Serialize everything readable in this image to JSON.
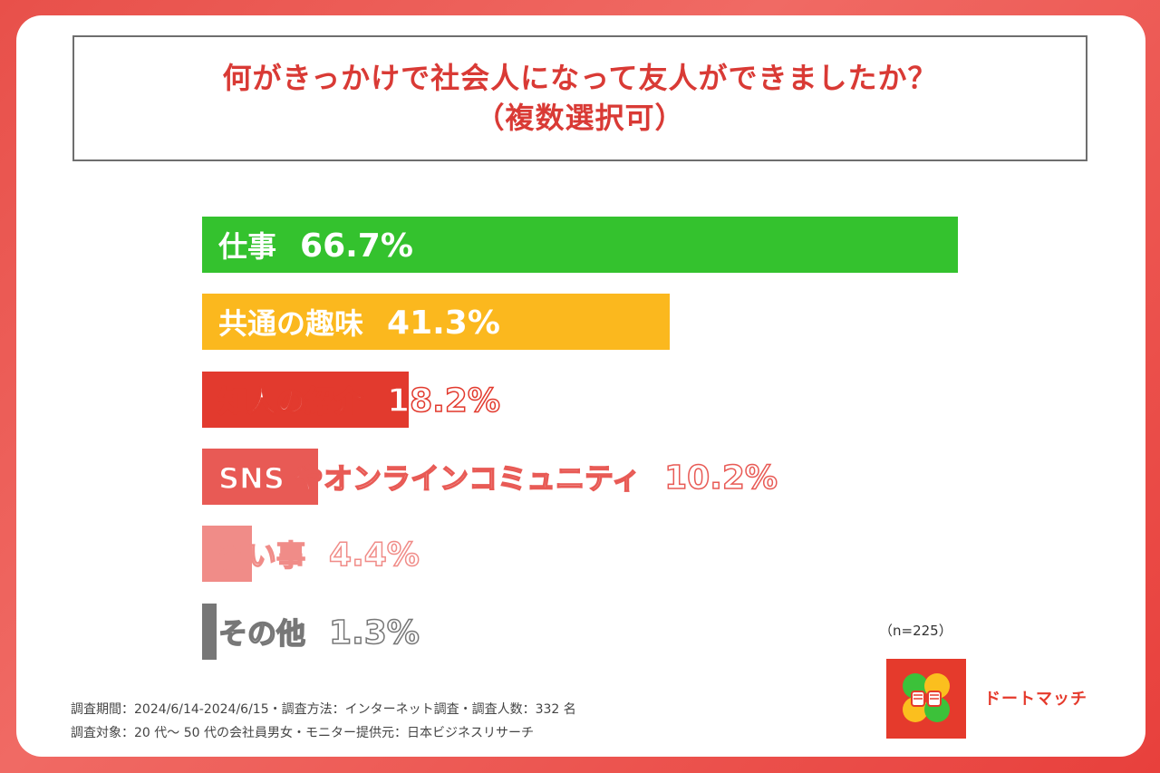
{
  "title": {
    "line1": "何がきっかけで社会人になって友人ができましたか？",
    "line2": "（複数選択可）"
  },
  "chart_data": {
    "type": "bar",
    "orientation": "horizontal",
    "categories": [
      "仕事",
      "共通の趣味",
      "知人の紹介",
      "SNSやオンラインコミュニティ",
      "習い事",
      "その他"
    ],
    "values": [
      66.7,
      41.3,
      18.2,
      10.2,
      4.4,
      1.3
    ],
    "value_labels": [
      "66.7%",
      "41.3%",
      "18.2%",
      "10.2%",
      "4.4%",
      "1.3%"
    ],
    "colors": [
      "#34c22e",
      "#fbb81e",
      "#e23a2e",
      "#e85a55",
      "#f08c88",
      "#777777"
    ],
    "unit": "%",
    "xlim": [
      0,
      66.7
    ]
  },
  "rows": [
    {
      "label": "仕事",
      "pct": "66.7%"
    },
    {
      "label": "共通の趣味",
      "pct": "41.3%"
    },
    {
      "label": "知人の紹介",
      "pct": "18.2%"
    },
    {
      "label": "SNS やオンラインコミュニティ",
      "pct": "10.2%"
    },
    {
      "label": "習い事",
      "pct": "4.4%"
    },
    {
      "label": "その他",
      "pct": "1.3%"
    }
  ],
  "sample_size": "（n=225）",
  "footnotes": {
    "line1": "調査期間：2024/6/14-2024/6/15・調査方法：インターネット調査・調査人数：332 名",
    "line2": "調査対象：20 代～ 50 代の会社員男女・モニター提供元：日本ビジネスリサーチ"
  },
  "logo": {
    "text": "ドートマッチ",
    "icon": "clover-handshake-icon"
  }
}
